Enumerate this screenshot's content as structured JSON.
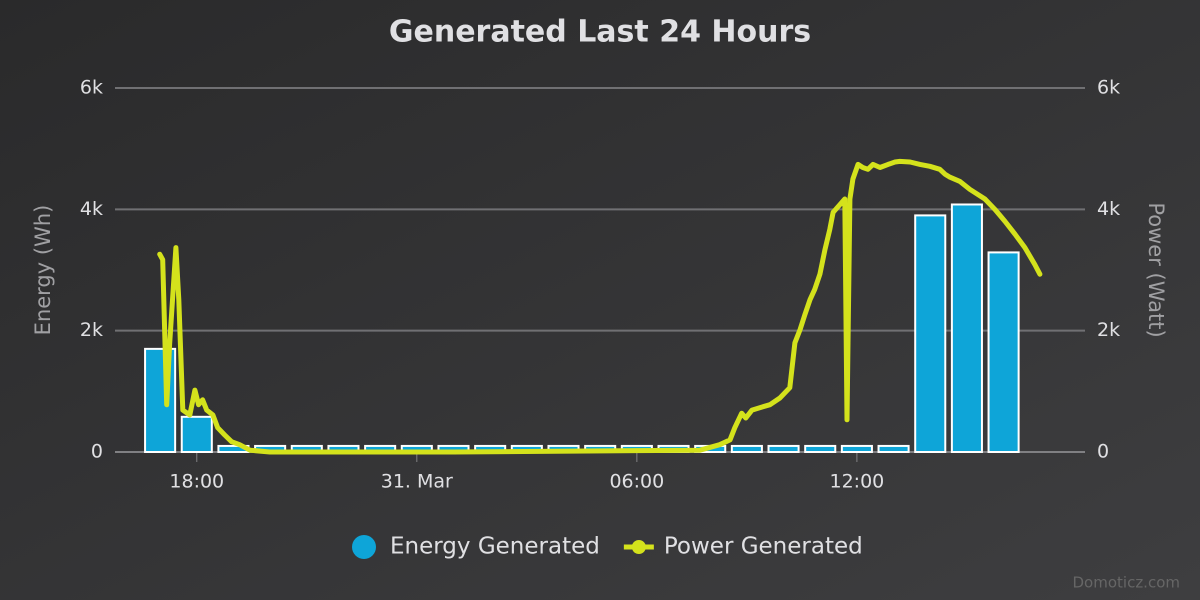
{
  "chart_data": {
    "type": "combo",
    "title": "Generated Last 24 Hours",
    "credits": "Domoticz.com",
    "y_label": "Energy (Wh)",
    "y2_label": "Power (Watt)",
    "xlim": [
      15.77,
      42.22
    ],
    "xticks": [
      {
        "value": 18,
        "label": "18:00"
      },
      {
        "value": 24,
        "label": "31. Mar"
      },
      {
        "value": 30,
        "label": "06:00"
      },
      {
        "value": 36,
        "label": "12:00"
      }
    ],
    "ylim": [
      0,
      6000
    ],
    "yticks": [
      {
        "value": 0,
        "label": "0"
      },
      {
        "value": 2000,
        "label": "2k"
      },
      {
        "value": 4000,
        "label": "4k"
      },
      {
        "value": 6000,
        "label": "6k"
      }
    ],
    "y2lim": [
      0,
      6000
    ],
    "y2ticks": [
      {
        "value": 0,
        "label": "0"
      },
      {
        "value": 2000,
        "label": "2k"
      },
      {
        "value": 4000,
        "label": "4k"
      },
      {
        "value": 6000,
        "label": "6k"
      }
    ],
    "grid": true,
    "legend": "bottom",
    "series": [
      {
        "name": "Energy Generated",
        "type": "column",
        "color": "#0ea5d8",
        "x": [
          17,
          18,
          19,
          20,
          21,
          22,
          23,
          24,
          25,
          26,
          27,
          28,
          29,
          30,
          31,
          32,
          33,
          34,
          35,
          36,
          37,
          38,
          39,
          40
        ],
        "values": [
          1700,
          580,
          100,
          100,
          100,
          100,
          100,
          100,
          100,
          100,
          100,
          100,
          100,
          100,
          100,
          100,
          100,
          100,
          100,
          100,
          100,
          3900,
          4080,
          3290
        ]
      },
      {
        "name": "Power Generated",
        "type": "line",
        "axis": "y2",
        "color": "#d4e21c",
        "x": [
          16.99,
          17.07,
          17.18,
          17.26,
          17.43,
          17.51,
          17.62,
          17.81,
          17.95,
          18.05,
          18.16,
          18.27,
          18.44,
          18.57,
          18.76,
          18.95,
          19.17,
          19.45,
          19.99,
          25,
          31.72,
          32.26,
          32.54,
          32.67,
          32.86,
          32.97,
          33.14,
          33.35,
          33.63,
          33.9,
          34.17,
          34.31,
          34.45,
          34.58,
          34.72,
          34.85,
          34.99,
          35.13,
          35.26,
          35.35,
          35.54,
          35.67,
          35.73,
          35.81,
          35.89,
          36.03,
          36.16,
          36.3,
          36.44,
          36.63,
          36.85,
          37.04,
          37.17,
          37.45,
          37.72,
          37.99,
          38.26,
          38.4,
          38.54,
          38.81,
          39.08,
          39.49,
          39.76,
          40.04,
          40.31,
          40.58,
          40.85,
          40.99
        ],
        "values": [
          3260,
          3170,
          780,
          1770,
          3370,
          2510,
          690,
          610,
          1020,
          780,
          860,
          690,
          610,
          400,
          280,
          170,
          120,
          30,
          0,
          0,
          30,
          120,
          200,
          400,
          640,
          560,
          690,
          730,
          780,
          890,
          1060,
          1800,
          2020,
          2260,
          2510,
          2680,
          2930,
          3340,
          3670,
          3950,
          4080,
          4170,
          530,
          4170,
          4500,
          4740,
          4690,
          4660,
          4740,
          4690,
          4740,
          4780,
          4790,
          4780,
          4740,
          4710,
          4660,
          4580,
          4530,
          4460,
          4330,
          4170,
          4000,
          3800,
          3590,
          3370,
          3090,
          2930
        ]
      }
    ]
  }
}
